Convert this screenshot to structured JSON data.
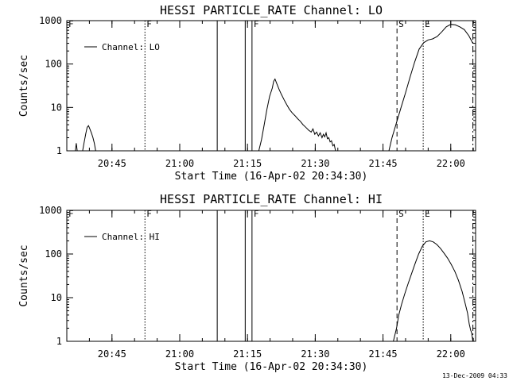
{
  "footer": {
    "timestamp": "13-Dec-2009 04:33"
  },
  "chart_data": [
    {
      "type": "line",
      "title": "HESSI PARTICLE_RATE Channel: LO",
      "xlabel": "Start Time (16-Apr-02 20:34:30)",
      "ylabel": "Counts/sec",
      "xlim_minutes": [
        20.5,
        111.0
      ],
      "ylim": [
        1,
        1000
      ],
      "yscale": "log",
      "xticks": [
        {
          "t": 30.5,
          "label": "20:45"
        },
        {
          "t": 45.5,
          "label": "21:00"
        },
        {
          "t": 60.5,
          "label": "21:15"
        },
        {
          "t": 75.5,
          "label": "21:30"
        },
        {
          "t": 90.5,
          "label": "21:45"
        },
        {
          "t": 105.5,
          "label": "22:00"
        }
      ],
      "yticks": [
        {
          "v": 1,
          "label": "1"
        },
        {
          "v": 10,
          "label": "10"
        },
        {
          "v": 100,
          "label": "100"
        },
        {
          "v": 1000,
          "label": "1000"
        }
      ],
      "legend": {
        "label": "Channel: LO",
        "position": "top-left"
      },
      "markers": [
        {
          "t": 20.5,
          "style": "dotted",
          "label": "F"
        },
        {
          "t": 37.8,
          "style": "dotted",
          "label": "F"
        },
        {
          "t": 53.8,
          "style": "solid",
          "label": ""
        },
        {
          "t": 60.0,
          "style": "solid",
          "label": ""
        },
        {
          "t": 61.5,
          "style": "solid",
          "label": "F"
        },
        {
          "t": 93.6,
          "style": "dashed",
          "label": "S"
        },
        {
          "t": 99.4,
          "style": "dotted",
          "label": "E"
        },
        {
          "t": 110.4,
          "style": "dashdot",
          "label": ""
        }
      ],
      "series": [
        {
          "segments": [
            [
              [
                22.4,
                1.0
              ],
              [
                22.6,
                1.5
              ],
              [
                22.8,
                1.0
              ]
            ],
            [
              [
                24.0,
                1.0
              ],
              [
                24.3,
                1.5
              ],
              [
                24.7,
                2.5
              ],
              [
                25.0,
                3.5
              ],
              [
                25.3,
                3.8
              ],
              [
                25.6,
                3.2
              ],
              [
                26.0,
                2.5
              ],
              [
                26.3,
                2.0
              ],
              [
                26.6,
                1.5
              ],
              [
                26.9,
                1.0
              ]
            ],
            [
              [
                63.0,
                1.0
              ],
              [
                63.6,
                1.8
              ],
              [
                64.2,
                4.0
              ],
              [
                64.8,
                9.0
              ],
              [
                65.4,
                18.0
              ],
              [
                66.0,
                28.0
              ],
              [
                66.3,
                40.0
              ],
              [
                66.6,
                45.0
              ],
              [
                67.0,
                35.0
              ],
              [
                67.5,
                26.0
              ],
              [
                68.0,
                20.0
              ],
              [
                68.6,
                15.0
              ],
              [
                69.2,
                11.5
              ],
              [
                69.8,
                9.0
              ],
              [
                70.4,
                7.5
              ],
              [
                71.0,
                6.5
              ],
              [
                71.6,
                5.5
              ],
              [
                72.2,
                4.8
              ],
              [
                72.8,
                4.0
              ],
              [
                73.4,
                3.5
              ],
              [
                74.0,
                3.0
              ],
              [
                74.6,
                2.7
              ],
              [
                75.0,
                3.2
              ],
              [
                75.4,
                2.4
              ],
              [
                75.8,
                2.7
              ],
              [
                76.2,
                2.2
              ],
              [
                76.6,
                2.6
              ],
              [
                77.0,
                2.0
              ],
              [
                77.3,
                2.4
              ],
              [
                77.6,
                2.1
              ],
              [
                77.9,
                2.6
              ],
              [
                78.2,
                1.9
              ],
              [
                78.5,
                2.0
              ],
              [
                78.8,
                1.6
              ],
              [
                79.1,
                1.7
              ],
              [
                79.4,
                1.3
              ],
              [
                79.7,
                1.4
              ],
              [
                80.0,
                1.0
              ]
            ],
            [
              [
                91.8,
                1.0
              ],
              [
                92.5,
                2.0
              ],
              [
                93.5,
                4.5
              ],
              [
                94.5,
                10.0
              ],
              [
                95.5,
                22.0
              ],
              [
                96.5,
                50.0
              ],
              [
                97.5,
                110.0
              ],
              [
                98.5,
                220.0
              ],
              [
                99.5,
                310.0
              ],
              [
                100.5,
                360.0
              ],
              [
                101.5,
                380.0
              ],
              [
                102.5,
                430.0
              ],
              [
                103.5,
                550.0
              ],
              [
                104.5,
                720.0
              ],
              [
                105.5,
                820.0
              ],
              [
                106.5,
                800.0
              ],
              [
                107.5,
                720.0
              ],
              [
                108.5,
                620.0
              ],
              [
                109.5,
                450.0
              ],
              [
                110.4,
                300.0
              ]
            ]
          ]
        }
      ]
    },
    {
      "type": "line",
      "title": "HESSI PARTICLE_RATE Channel: HI",
      "xlabel": "Start Time (16-Apr-02 20:34:30)",
      "ylabel": "Counts/sec",
      "xlim_minutes": [
        20.5,
        111.0
      ],
      "ylim": [
        1,
        1000
      ],
      "yscale": "log",
      "xticks": [
        {
          "t": 30.5,
          "label": "20:45"
        },
        {
          "t": 45.5,
          "label": "21:00"
        },
        {
          "t": 60.5,
          "label": "21:15"
        },
        {
          "t": 75.5,
          "label": "21:30"
        },
        {
          "t": 90.5,
          "label": "21:45"
        },
        {
          "t": 105.5,
          "label": "22:00"
        }
      ],
      "yticks": [
        {
          "v": 1,
          "label": "1"
        },
        {
          "v": 10,
          "label": "10"
        },
        {
          "v": 100,
          "label": "100"
        },
        {
          "v": 1000,
          "label": "1000"
        }
      ],
      "legend": {
        "label": "Channel: HI",
        "position": "top-left"
      },
      "markers": [
        {
          "t": 20.5,
          "style": "dotted",
          "label": "F"
        },
        {
          "t": 37.8,
          "style": "dotted",
          "label": "F"
        },
        {
          "t": 53.8,
          "style": "solid",
          "label": ""
        },
        {
          "t": 60.0,
          "style": "solid",
          "label": ""
        },
        {
          "t": 61.5,
          "style": "solid",
          "label": "F"
        },
        {
          "t": 93.6,
          "style": "dashed",
          "label": "S"
        },
        {
          "t": 99.4,
          "style": "dotted",
          "label": "E"
        },
        {
          "t": 110.4,
          "style": "dashdot",
          "label": ""
        }
      ],
      "series": [
        {
          "segments": [
            [
              [
                92.8,
                1.0
              ],
              [
                93.5,
                2.0
              ],
              [
                94.0,
                4.0
              ],
              [
                94.6,
                7.0
              ],
              [
                95.3,
                12.0
              ],
              [
                96.0,
                20.0
              ],
              [
                96.8,
                35.0
              ],
              [
                97.6,
                60.0
              ],
              [
                98.4,
                100.0
              ],
              [
                99.2,
                150.0
              ],
              [
                100.0,
                190.0
              ],
              [
                100.8,
                200.0
              ],
              [
                101.6,
                190.0
              ],
              [
                102.4,
                165.0
              ],
              [
                103.2,
                135.0
              ],
              [
                104.0,
                105.0
              ],
              [
                104.8,
                80.0
              ],
              [
                105.6,
                58.0
              ],
              [
                106.4,
                40.0
              ],
              [
                107.2,
                25.0
              ],
              [
                108.0,
                14.0
              ],
              [
                108.6,
                8.0
              ],
              [
                109.2,
                4.5
              ],
              [
                109.6,
                2.5
              ],
              [
                109.9,
                1.8
              ],
              [
                110.1,
                1.6
              ],
              [
                110.4,
                1.0
              ]
            ]
          ]
        }
      ]
    }
  ]
}
